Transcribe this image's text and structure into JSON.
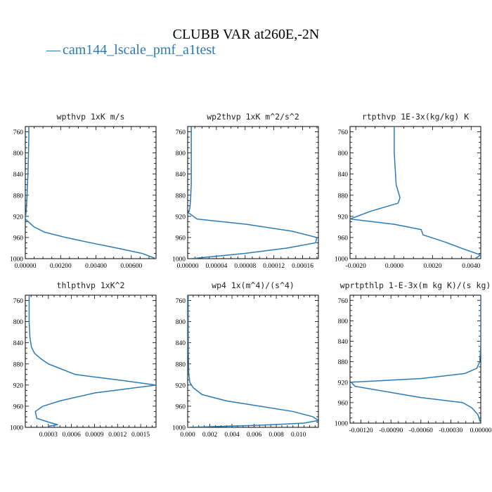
{
  "figure": {
    "title": "CLUBB VAR at260E,-2N",
    "legend": [
      {
        "label": "cam144_lscale_pmf_a1test",
        "line": "—",
        "color": "#2a7ab5"
      }
    ],
    "line_color": "#2a7ab5"
  },
  "chart_data": [
    {
      "type": "line",
      "title": "wpthvp  1xK m/s",
      "xlim": [
        0,
        0.0074
      ],
      "ylim": [
        1000,
        750
      ],
      "x_ticks": [
        0,
        0.002,
        0.004,
        0.006
      ],
      "x_tick_labels": [
        "0.00000",
        "0.00200",
        "0.00400",
        "0.00600"
      ],
      "y_ticks": [
        760,
        800,
        840,
        880,
        920,
        960,
        1000
      ],
      "y_tick_labels": [
        "760",
        "800",
        "840",
        "880",
        "920",
        "960",
        "1000"
      ],
      "series": [
        {
          "x": [
            0.0002,
            0.0002,
            0.00018,
            0.00015,
            0.0001,
            5e-05,
            0.0,
            0.0005,
            0.0011,
            0.0023,
            0.0037,
            0.0052,
            0.0066,
            0.0074
          ],
          "y": [
            750,
            770,
            800,
            840,
            880,
            910,
            925,
            940,
            950,
            960,
            970,
            980,
            990,
            1000
          ]
        }
      ]
    },
    {
      "type": "line",
      "title": "wp2thvp  1xK m^2/s^2",
      "xlim": [
        0,
        0.000182
      ],
      "ylim": [
        1000,
        750
      ],
      "x_ticks": [
        0,
        4e-05,
        8e-05,
        0.00012,
        0.00016
      ],
      "x_tick_labels": [
        "0.00000",
        "0.00004",
        "0.00008",
        "0.00012",
        "0.00016"
      ],
      "y_ticks": [
        760,
        800,
        840,
        880,
        920,
        960,
        1000
      ],
      "y_tick_labels": [
        "760",
        "800",
        "840",
        "880",
        "920",
        "960",
        "1000"
      ],
      "series": [
        {
          "x": [
            5e-06,
            5e-06,
            5e-06,
            4e-06,
            3e-06,
            1e-06,
            1.3e-05,
            8.2e-05,
            0.000145,
            0.00018,
            0.000178,
            0.000138,
            8e-05,
            5e-06
          ],
          "y": [
            750,
            800,
            860,
            890,
            905,
            913,
            925,
            935,
            948,
            960,
            970,
            980,
            990,
            1000
          ]
        }
      ]
    },
    {
      "type": "line",
      "title": "rtpthvp  1E-3x(kg/kg) K",
      "xlim": [
        -0.0023,
        0.0045
      ],
      "ylim": [
        1000,
        750
      ],
      "x_ticks": [
        -0.002,
        0,
        0.002,
        0.004
      ],
      "x_tick_labels": [
        "-0.0020",
        "0.0000",
        "0.0020",
        "0.0040"
      ],
      "y_ticks": [
        760,
        800,
        840,
        880,
        920,
        960,
        1000
      ],
      "y_tick_labels": [
        "760",
        "800",
        "840",
        "880",
        "920",
        "960",
        "1000"
      ],
      "series": [
        {
          "x": [
            0.0,
            0.0,
            0.0001,
            0.0003,
            0.0002,
            -0.0012,
            -0.0023,
            0.0,
            0.0014,
            0.0015,
            0.0026,
            0.0037,
            0.0045,
            0.0042
          ],
          "y": [
            750,
            800,
            860,
            885,
            895,
            910,
            925,
            935,
            945,
            955,
            968,
            983,
            993,
            1000
          ]
        }
      ]
    },
    {
      "type": "line",
      "title": "thlpthvp  1xK^2",
      "xlim": [
        0,
        0.0017
      ],
      "ylim": [
        1000,
        750
      ],
      "x_ticks": [
        0.0003,
        0.0006,
        0.0009,
        0.0012,
        0.0015
      ],
      "x_tick_labels": [
        "0.0003",
        "0.0006",
        "0.0009",
        "0.0012",
        "0.0015"
      ],
      "y_ticks": [
        760,
        800,
        840,
        880,
        920,
        960,
        1000
      ],
      "y_tick_labels": [
        "760",
        "800",
        "840",
        "880",
        "920",
        "960",
        "1000"
      ],
      "series": [
        {
          "x": [
            5e-05,
            5e-05,
            6e-05,
            8e-05,
            0.00012,
            0.0002,
            0.0003,
            0.00065,
            0.0013,
            0.0017,
            0.0009,
            0.00045,
            0.00023,
            0.00013,
            0.00015,
            0.0003,
            0.00042,
            0.0003
          ],
          "y": [
            750,
            800,
            830,
            848,
            860,
            870,
            880,
            900,
            912,
            920,
            935,
            950,
            960,
            970,
            983,
            990,
            995,
            998
          ]
        }
      ]
    },
    {
      "type": "line",
      "title": "wp4  1x(m^4)/(s^4)",
      "xlim": [
        0,
        0.0118
      ],
      "ylim": [
        1000,
        750
      ],
      "x_ticks": [
        0,
        0.002,
        0.004,
        0.006,
        0.008,
        0.01
      ],
      "x_tick_labels": [
        "0.000",
        "0.002",
        "0.004",
        "0.006",
        "0.008",
        "0.010"
      ],
      "y_ticks": [
        760,
        800,
        840,
        880,
        920,
        960,
        1000
      ],
      "y_tick_labels": [
        "760",
        "800",
        "840",
        "880",
        "920",
        "960",
        "1000"
      ],
      "series": [
        {
          "x": [
            5e-05,
            5e-05,
            6e-05,
            0.0001,
            0.0002,
            0.0005,
            0.0013,
            0.0035,
            0.0065,
            0.0095,
            0.0113,
            0.0118,
            0.0105,
            0.0065,
            0.0
          ],
          "y": [
            750,
            800,
            860,
            900,
            915,
            925,
            938,
            950,
            960,
            970,
            980,
            987,
            992,
            996,
            1000
          ]
        }
      ]
    },
    {
      "type": "line",
      "title": "wprtpthlp  1-E-3x(m kg K)/(s kg)",
      "xlim": [
        -0.00131,
        0.0
      ],
      "ylim": [
        1000,
        750
      ],
      "x_ticks": [
        -0.0012,
        -0.0009,
        -0.0006,
        -0.0003,
        0.0
      ],
      "x_tick_labels": [
        "-0.00120",
        "-0.00090",
        "-0.00060",
        "-0.00030",
        "0.00000"
      ],
      "y_ticks": [
        760,
        800,
        840,
        880,
        920,
        960,
        1000
      ],
      "y_tick_labels": [
        "760",
        "800",
        "840",
        "880",
        "920",
        "960",
        "1000"
      ],
      "series": [
        {
          "x": [
            0.0,
            0.0,
            -1e-05,
            -4e-05,
            -0.00016,
            -0.0006,
            -0.0013,
            -0.00126,
            -0.0006,
            -0.00018,
            -9e-05,
            -3e-05,
            0.0
          ],
          "y": [
            750,
            850,
            880,
            893,
            903,
            913,
            920,
            928,
            950,
            960,
            970,
            983,
            1000
          ]
        }
      ]
    }
  ]
}
